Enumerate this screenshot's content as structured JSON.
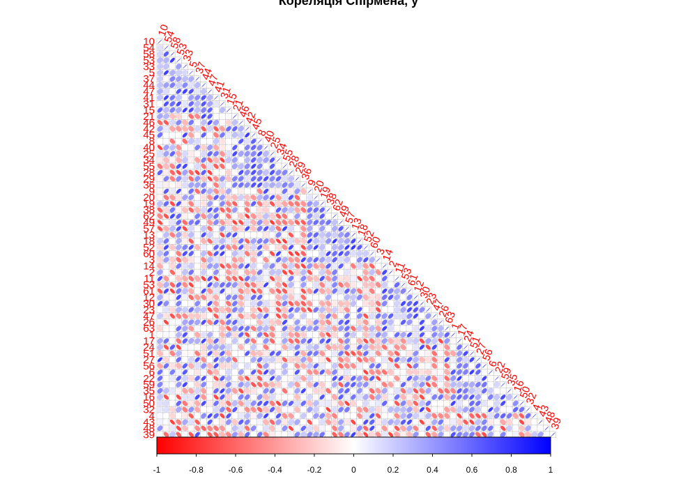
{
  "chart_data": {
    "type": "heatmap",
    "title": "Кореляція Спірмена, у",
    "layout": "lower-triangle",
    "cell_glyph": "ellipse",
    "variables": [
      "10",
      "54",
      "58",
      "53",
      "33",
      "5",
      "37",
      "44",
      "47",
      "41",
      "31",
      "15",
      "21",
      "46",
      "42",
      "45",
      "8",
      "40",
      "25",
      "34",
      "55",
      "28",
      "29",
      "36",
      "9",
      "20",
      "19",
      "38",
      "62",
      "49",
      "57",
      "13",
      "18",
      "52",
      "60",
      "3",
      "14",
      "2",
      "11",
      "53",
      "61",
      "12",
      "30",
      "23",
      "47",
      "26",
      "63",
      "1",
      "17",
      "24",
      "51",
      "27",
      "56",
      "6",
      "22",
      "59",
      "35",
      "16",
      "50",
      "32",
      "4",
      "43",
      "48",
      "39"
    ],
    "legend": {
      "min": -1,
      "max": 1,
      "ticks": [
        -1,
        -0.8,
        -0.6,
        -0.4,
        -0.2,
        0,
        0.2,
        0.4,
        0.6,
        0.8,
        1
      ],
      "tick_labels": [
        "-1",
        "-0.8",
        "-0.6",
        "-0.4",
        "-0.2",
        "0",
        "0.2",
        "0.4",
        "0.6",
        "0.8",
        "1"
      ],
      "color_low": "#ff0000",
      "color_mid": "#ffffff",
      "color_high": "#0000ff",
      "position": "bottom"
    },
    "label_color": "#ff0000",
    "diagonal": 1,
    "seed": 73
  }
}
